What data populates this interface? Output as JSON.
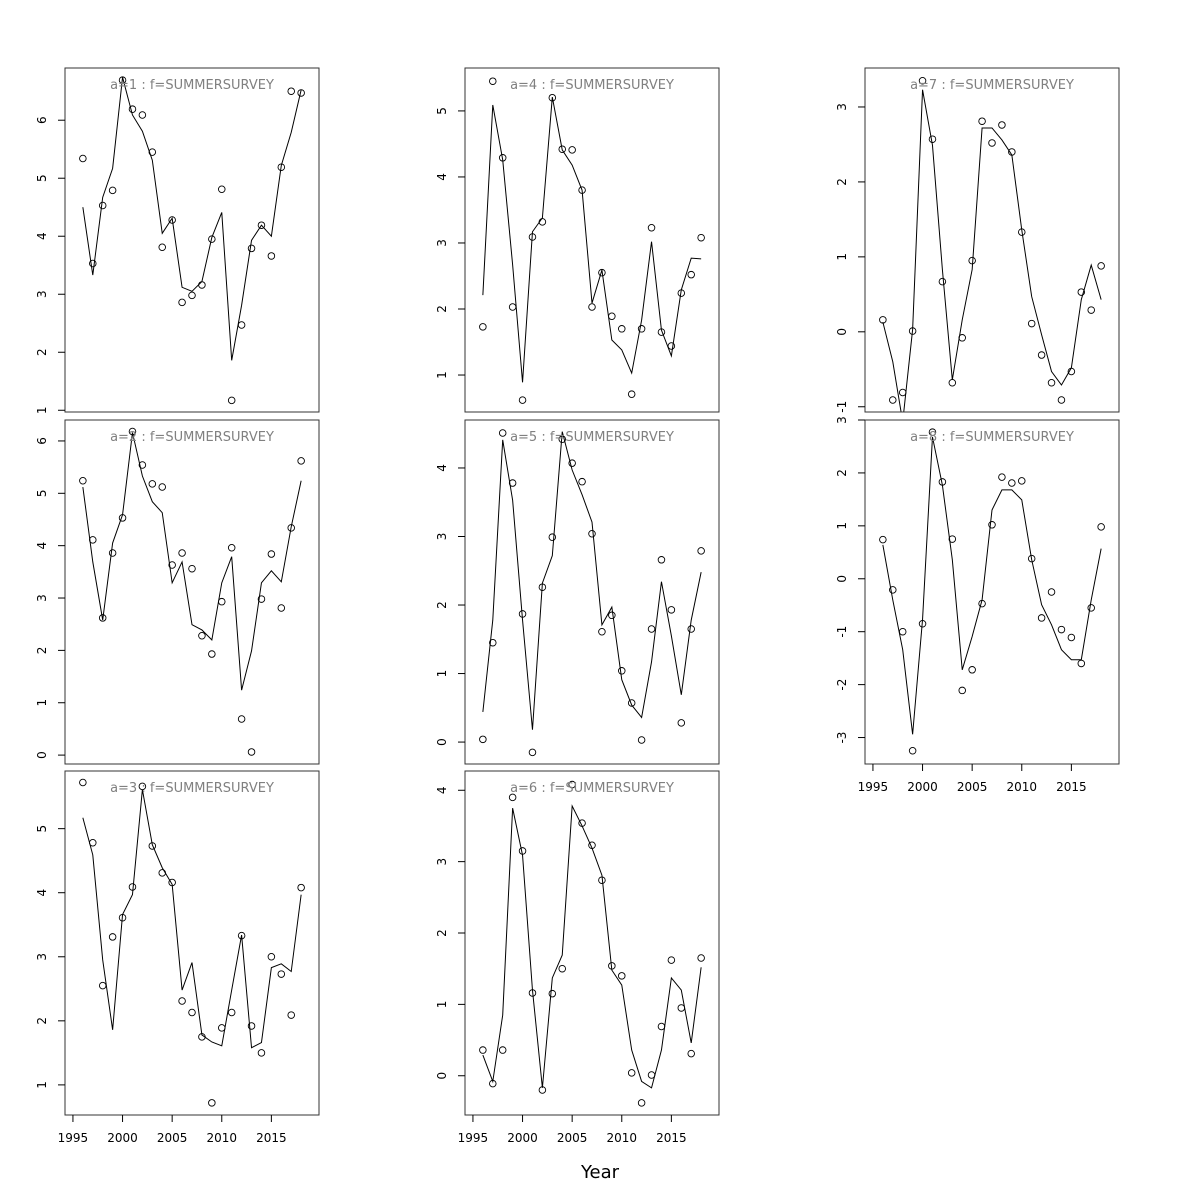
{
  "x_label": "Year",
  "chart_data": [
    {
      "type": "scatter",
      "title": "a=1 : f=SUMMERSURVEY",
      "x": [
        1996,
        1997,
        1998,
        1999,
        2000,
        2001,
        2002,
        2003,
        2004,
        2005,
        2006,
        2007,
        2008,
        2009,
        2010,
        2011,
        2012,
        2013,
        2014,
        2015,
        2016,
        2017,
        2018
      ],
      "values": [
        5.34,
        3.53,
        4.53,
        4.79,
        6.69,
        6.19,
        6.09,
        5.45,
        3.81,
        4.28,
        2.86,
        2.98,
        3.16,
        3.95,
        4.81,
        1.17,
        2.47,
        3.79,
        4.19,
        3.66,
        5.19,
        6.5,
        6.47
      ],
      "fit": [
        4.5,
        3.33,
        4.67,
        5.17,
        6.74,
        6.09,
        5.81,
        5.31,
        4.05,
        4.31,
        3.12,
        3.05,
        3.22,
        3.98,
        4.41,
        1.86,
        2.81,
        3.93,
        4.19,
        4.0,
        5.22,
        5.79,
        6.52
      ],
      "xlim": [
        1994.2,
        2019.8
      ],
      "ylim": [
        0.97,
        6.9
      ],
      "yticks": [
        1,
        2,
        3,
        4,
        5,
        6
      ]
    },
    {
      "type": "scatter",
      "title": "a=2 : f=SUMMERSURVEY",
      "x": [
        1996,
        1997,
        1998,
        1999,
        2000,
        2001,
        2002,
        2003,
        2004,
        2005,
        2006,
        2007,
        2008,
        2009,
        2010,
        2011,
        2012,
        2013,
        2014,
        2015,
        2016,
        2017,
        2018
      ],
      "values": [
        5.24,
        4.11,
        2.62,
        3.86,
        4.53,
        6.18,
        5.54,
        5.18,
        5.12,
        3.63,
        3.86,
        3.56,
        2.28,
        1.93,
        2.93,
        3.96,
        0.69,
        0.06,
        2.98,
        3.84,
        2.81,
        4.34,
        5.62
      ],
      "fit": [
        5.12,
        3.69,
        2.58,
        4.05,
        4.59,
        6.16,
        5.33,
        4.84,
        4.63,
        3.29,
        3.69,
        2.49,
        2.39,
        2.2,
        3.29,
        3.79,
        1.24,
        1.99,
        3.29,
        3.52,
        3.31,
        4.36,
        5.24
      ],
      "xlim": [
        1994.2,
        2019.8
      ],
      "ylim": [
        -0.17,
        6.4
      ],
      "yticks": [
        0,
        1,
        2,
        3,
        4,
        5,
        6
      ]
    },
    {
      "type": "scatter",
      "title": "a=3 : f=SUMMERSURVEY",
      "x": [
        1996,
        1997,
        1998,
        1999,
        2000,
        2001,
        2002,
        2003,
        2004,
        2005,
        2006,
        2007,
        2008,
        2009,
        2010,
        2011,
        2012,
        2013,
        2014,
        2015,
        2016,
        2017,
        2018
      ],
      "values": [
        5.72,
        4.78,
        2.55,
        3.31,
        3.61,
        4.09,
        5.66,
        4.73,
        4.31,
        4.16,
        2.31,
        2.13,
        1.75,
        0.72,
        1.89,
        2.13,
        3.33,
        1.92,
        1.5,
        3.0,
        2.73,
        2.09,
        4.08
      ],
      "fit": [
        5.17,
        4.59,
        2.95,
        1.86,
        3.66,
        3.97,
        5.61,
        4.75,
        4.39,
        4.13,
        2.48,
        2.91,
        1.78,
        1.67,
        1.61,
        2.48,
        3.34,
        1.58,
        1.66,
        2.83,
        2.89,
        2.77,
        3.97
      ],
      "xlim": [
        1994.2,
        2019.8
      ],
      "ylim": [
        0.53,
        5.9
      ],
      "yticks": [
        1,
        2,
        3,
        4,
        5
      ],
      "xticks": [
        1995,
        2000,
        2005,
        2010,
        2015
      ]
    },
    {
      "type": "scatter",
      "title": "a=4 : f=SUMMERSURVEY",
      "x": [
        1996,
        1997,
        1998,
        1999,
        2000,
        2001,
        2002,
        2003,
        2004,
        2005,
        2006,
        2007,
        2008,
        2009,
        2010,
        2011,
        2012,
        2013,
        2014,
        2015,
        2016,
        2017,
        2018
      ],
      "values": [
        1.73,
        5.45,
        4.29,
        2.03,
        0.62,
        3.09,
        3.32,
        5.2,
        4.42,
        4.41,
        3.8,
        2.03,
        2.55,
        1.89,
        1.7,
        0.71,
        1.7,
        3.23,
        1.65,
        1.44,
        2.24,
        2.52,
        3.08
      ],
      "fit": [
        2.21,
        5.09,
        4.26,
        2.67,
        0.89,
        3.17,
        3.38,
        5.21,
        4.41,
        4.18,
        3.8,
        2.09,
        2.59,
        1.53,
        1.38,
        1.03,
        1.83,
        3.02,
        1.68,
        1.29,
        2.29,
        2.77,
        2.76
      ],
      "xlim": [
        1994.2,
        2019.8
      ],
      "ylim": [
        0.44,
        5.65
      ],
      "yticks": [
        1,
        2,
        3,
        4,
        5
      ]
    },
    {
      "type": "scatter",
      "title": "a=5 : f=SUMMERSURVEY",
      "x": [
        1996,
        1997,
        1998,
        1999,
        2000,
        2001,
        2002,
        2003,
        2004,
        2005,
        2006,
        2007,
        2008,
        2009,
        2010,
        2011,
        2012,
        2013,
        2014,
        2015,
        2016,
        2017,
        2018
      ],
      "values": [
        0.04,
        1.45,
        4.51,
        3.78,
        1.87,
        -0.15,
        2.26,
        2.99,
        4.42,
        4.07,
        3.8,
        3.04,
        1.61,
        1.85,
        1.04,
        0.57,
        0.03,
        1.65,
        2.66,
        1.93,
        0.28,
        1.65,
        2.79
      ],
      "fit": [
        0.44,
        1.78,
        4.41,
        3.53,
        1.78,
        0.18,
        2.32,
        2.72,
        4.53,
        3.97,
        3.61,
        3.21,
        1.71,
        1.97,
        0.91,
        0.54,
        0.36,
        1.17,
        2.34,
        1.55,
        0.69,
        1.78,
        2.48
      ],
      "xlim": [
        1994.2,
        2019.8
      ],
      "ylim": [
        -0.32,
        4.7
      ],
      "yticks": [
        0,
        1,
        2,
        3,
        4
      ]
    },
    {
      "type": "scatter",
      "title": "a=6 : f=SUMMERSURVEY",
      "x": [
        1996,
        1997,
        1998,
        1999,
        2000,
        2001,
        2002,
        2003,
        2004,
        2005,
        2006,
        2007,
        2008,
        2009,
        2010,
        2011,
        2012,
        2013,
        2014,
        2015,
        2016,
        2017,
        2018
      ],
      "values": [
        0.36,
        -0.11,
        0.36,
        3.9,
        3.15,
        1.16,
        -0.2,
        1.15,
        1.5,
        4.08,
        3.54,
        3.23,
        2.74,
        1.54,
        1.4,
        0.04,
        -0.38,
        0.01,
        0.69,
        1.62,
        0.95,
        0.31,
        1.65
      ],
      "fit": [
        0.29,
        -0.08,
        0.85,
        3.75,
        3.09,
        1.2,
        -0.17,
        1.37,
        1.69,
        3.78,
        3.5,
        3.19,
        2.81,
        1.48,
        1.27,
        0.36,
        -0.08,
        -0.17,
        0.36,
        1.37,
        1.2,
        0.46,
        1.52
      ],
      "xlim": [
        1994.2,
        2019.8
      ],
      "ylim": [
        -0.55,
        4.27
      ],
      "yticks": [
        0,
        1,
        2,
        3,
        4
      ],
      "xticks": [
        1995,
        2000,
        2005,
        2010,
        2015
      ]
    },
    {
      "type": "scatter",
      "title": "a=7 : f=SUMMERSURVEY",
      "x": [
        1996,
        1997,
        1998,
        1999,
        2000,
        2001,
        2002,
        2003,
        2004,
        2005,
        2006,
        2007,
        2008,
        2009,
        2010,
        2011,
        2012,
        2013,
        2014,
        2015,
        2016,
        2017,
        2018
      ],
      "values": [
        0.16,
        -0.91,
        -0.81,
        0.01,
        3.35,
        2.57,
        0.67,
        -0.68,
        -0.08,
        0.95,
        2.81,
        2.52,
        2.76,
        2.4,
        1.33,
        0.11,
        -0.31,
        -0.68,
        -0.91,
        -0.53,
        0.53,
        0.29,
        0.88
      ],
      "fit": [
        0.13,
        -0.4,
        -1.2,
        0.03,
        3.23,
        2.49,
        0.83,
        -0.64,
        0.16,
        0.83,
        2.72,
        2.72,
        2.56,
        2.36,
        1.36,
        0.47,
        -0.04,
        -0.53,
        -0.71,
        -0.48,
        0.43,
        0.89,
        0.43
      ],
      "xlim": [
        1994.2,
        2019.8
      ],
      "ylim": [
        -1.07,
        3.52
      ],
      "yticks": [
        -1,
        0,
        1,
        2,
        3
      ]
    },
    {
      "type": "scatter",
      "title": "a=8 : f=SUMMERSURVEY",
      "x": [
        1996,
        1997,
        1998,
        1999,
        2000,
        2001,
        2002,
        2003,
        2004,
        2005,
        2006,
        2007,
        2008,
        2009,
        2010,
        2011,
        2012,
        2013,
        2014,
        2015,
        2016,
        2017,
        2018
      ],
      "values": [
        0.74,
        -0.21,
        -1.0,
        -3.25,
        -0.85,
        2.77,
        1.83,
        0.75,
        -2.11,
        -1.72,
        -0.47,
        1.02,
        1.92,
        1.81,
        1.85,
        0.38,
        -0.74,
        -0.25,
        -0.96,
        -1.11,
        -1.6,
        -0.55,
        0.98
      ],
      "fit": [
        0.64,
        -0.4,
        -1.34,
        -2.94,
        -0.77,
        2.68,
        1.77,
        0.36,
        -1.72,
        -1.09,
        -0.4,
        1.3,
        1.68,
        1.68,
        1.49,
        0.36,
        -0.49,
        -0.87,
        -1.34,
        -1.53,
        -1.53,
        -0.4,
        0.57
      ],
      "xlim": [
        1994.2,
        2019.8
      ],
      "ylim": [
        -3.5,
        3.0
      ],
      "yticks": [
        -3,
        -2,
        -1,
        0,
        1,
        2,
        3
      ],
      "xticks": [
        1995,
        2000,
        2005,
        2010,
        2015
      ]
    }
  ]
}
